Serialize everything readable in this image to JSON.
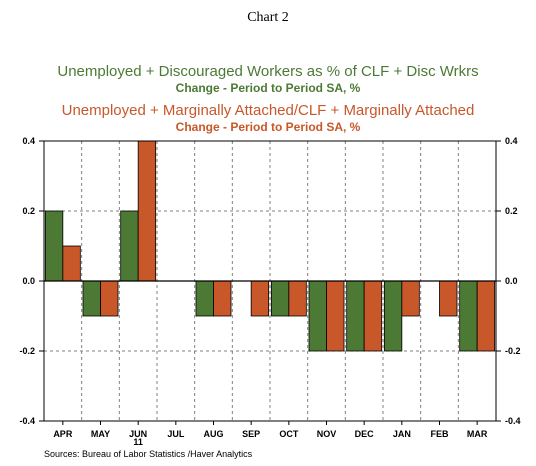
{
  "page_title": "Chart 2",
  "legend": [
    {
      "name": "Unemployed + Discouraged Workers as % of CLF + Disc Wrkrs",
      "sub": "Change - Period to Period    SA, %"
    },
    {
      "name": "Unemployed + Marginally Attached/CLF + Marginally Attached",
      "sub": "Change - Period to Period    SA, %"
    }
  ],
  "source": "Sources:  Bureau of Labor Statistics /Haver Analytics",
  "chart_data": {
    "type": "bar",
    "title": "Chart 2",
    "categories": [
      "APR",
      "MAY",
      "JUN",
      "JUL",
      "AUG",
      "SEP",
      "OCT",
      "NOV",
      "DEC",
      "JAN",
      "FEB",
      "MAR"
    ],
    "year_label": "11",
    "series": [
      {
        "name": "Unemployed + Discouraged Workers as % of CLF + Disc Wrkrs",
        "color": "#4c7a35",
        "values": [
          0.2,
          -0.1,
          0.2,
          0.0,
          -0.1,
          0.0,
          -0.1,
          -0.2,
          -0.2,
          -0.2,
          0.0,
          -0.2
        ]
      },
      {
        "name": "Unemployed + Marginally Attached/CLF + Marginally Attached",
        "color": "#c8572a",
        "values": [
          0.1,
          -0.1,
          0.4,
          0.0,
          -0.1,
          -0.1,
          -0.1,
          -0.2,
          -0.2,
          -0.1,
          -0.1,
          -0.2
        ]
      }
    ],
    "yticks": [
      "0.4",
      "0.2",
      "0.0",
      "-0.2",
      "-0.4"
    ],
    "ylim": [
      -0.4,
      0.4
    ],
    "grid": true,
    "gridline_color": "#808080"
  }
}
